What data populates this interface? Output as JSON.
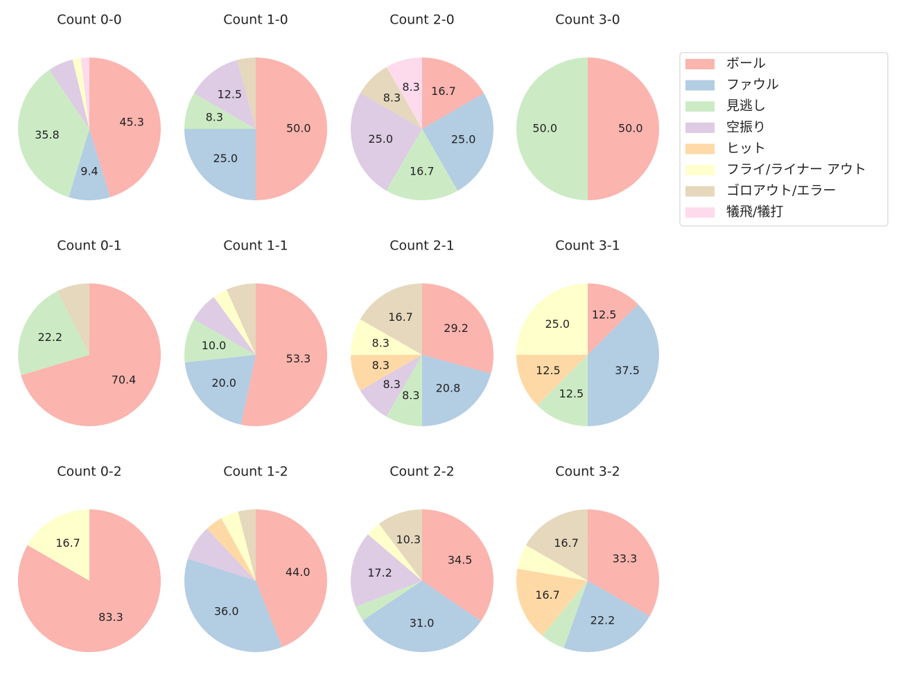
{
  "chart_data": [
    {
      "type": "pie",
      "title": "Count 0-0",
      "categories": [
        "ボール",
        "ファウル",
        "見逃し",
        "空振り",
        "ヒット",
        "フライ/ライナー アウト",
        "ゴロアウト/エラー",
        "犠飛/犠打"
      ],
      "colors": [
        "#fbb4ae",
        "#b3cde3",
        "#ccebc5",
        "#decbe4",
        "#fed9a6",
        "#ffffcc",
        "#e5d8bd",
        "#fddaec"
      ],
      "values": [
        45.3,
        9.4,
        35.8,
        5.7,
        0,
        1.9,
        0,
        1.9
      ],
      "value_labels": [
        "45.3",
        "9.4",
        "35.8",
        null,
        null,
        null,
        null,
        null
      ]
    },
    {
      "type": "pie",
      "title": "Count 1-0",
      "categories": [
        "ボール",
        "ファウル",
        "見逃し",
        "空振り",
        "ヒット",
        "フライ/ライナー アウト",
        "ゴロアウト/エラー",
        "犠飛/犠打"
      ],
      "colors": [
        "#fbb4ae",
        "#b3cde3",
        "#ccebc5",
        "#decbe4",
        "#fed9a6",
        "#ffffcc",
        "#e5d8bd",
        "#fddaec"
      ],
      "values": [
        50.0,
        25.0,
        8.3,
        12.5,
        0,
        0,
        4.2,
        0
      ],
      "value_labels": [
        "50.0",
        "25.0",
        "8.3",
        "12.5",
        null,
        null,
        null,
        null
      ]
    },
    {
      "type": "pie",
      "title": "Count 2-0",
      "categories": [
        "ボール",
        "ファウル",
        "見逃し",
        "空振り",
        "ヒット",
        "フライ/ライナー アウト",
        "ゴロアウト/エラー",
        "犠飛/犠打"
      ],
      "colors": [
        "#fbb4ae",
        "#b3cde3",
        "#ccebc5",
        "#decbe4",
        "#fed9a6",
        "#ffffcc",
        "#e5d8bd",
        "#fddaec"
      ],
      "values": [
        16.7,
        25.0,
        16.7,
        25.0,
        0,
        0,
        8.3,
        8.3
      ],
      "value_labels": [
        "16.7",
        "25.0",
        "16.7",
        "25.0",
        null,
        null,
        "8.3",
        "8.3"
      ]
    },
    {
      "type": "pie",
      "title": "Count 3-0",
      "categories": [
        "ボール",
        "ファウル",
        "見逃し",
        "空振り",
        "ヒット",
        "フライ/ライナー アウト",
        "ゴロアウト/エラー",
        "犠飛/犠打"
      ],
      "colors": [
        "#fbb4ae",
        "#b3cde3",
        "#ccebc5",
        "#decbe4",
        "#fed9a6",
        "#ffffcc",
        "#e5d8bd",
        "#fddaec"
      ],
      "values": [
        50.0,
        0,
        50.0,
        0,
        0,
        0,
        0,
        0
      ],
      "value_labels": [
        "50.0",
        null,
        "50.0",
        null,
        null,
        null,
        null,
        null
      ]
    },
    {
      "type": "pie",
      "title": "Count 0-1",
      "categories": [
        "ボール",
        "ファウル",
        "見逃し",
        "空振り",
        "ヒット",
        "フライ/ライナー アウト",
        "ゴロアウト/エラー",
        "犠飛/犠打"
      ],
      "colors": [
        "#fbb4ae",
        "#b3cde3",
        "#ccebc5",
        "#decbe4",
        "#fed9a6",
        "#ffffcc",
        "#e5d8bd",
        "#fddaec"
      ],
      "values": [
        70.4,
        0,
        22.2,
        0,
        0,
        0,
        7.4,
        0
      ],
      "value_labels": [
        "70.4",
        null,
        "22.2",
        null,
        null,
        null,
        null,
        null
      ]
    },
    {
      "type": "pie",
      "title": "Count 1-1",
      "categories": [
        "ボール",
        "ファウル",
        "見逃し",
        "空振り",
        "ヒット",
        "フライ/ライナー アウト",
        "ゴロアウト/エラー",
        "犠飛/犠打"
      ],
      "colors": [
        "#fbb4ae",
        "#b3cde3",
        "#ccebc5",
        "#decbe4",
        "#fed9a6",
        "#ffffcc",
        "#e5d8bd",
        "#fddaec"
      ],
      "values": [
        53.3,
        20.0,
        10.0,
        6.7,
        0,
        3.3,
        6.7,
        0
      ],
      "value_labels": [
        "53.3",
        "20.0",
        "10.0",
        null,
        null,
        null,
        null,
        null
      ]
    },
    {
      "type": "pie",
      "title": "Count 2-1",
      "categories": [
        "ボール",
        "ファウル",
        "見逃し",
        "空振り",
        "ヒット",
        "フライ/ライナー アウト",
        "ゴロアウト/エラー",
        "犠飛/犠打"
      ],
      "colors": [
        "#fbb4ae",
        "#b3cde3",
        "#ccebc5",
        "#decbe4",
        "#fed9a6",
        "#ffffcc",
        "#e5d8bd",
        "#fddaec"
      ],
      "values": [
        29.2,
        20.8,
        8.3,
        8.3,
        8.3,
        8.3,
        16.7,
        0
      ],
      "value_labels": [
        "29.2",
        "20.8",
        "8.3",
        "8.3",
        "8.3",
        "8.3",
        "16.7",
        null
      ]
    },
    {
      "type": "pie",
      "title": "Count 3-1",
      "categories": [
        "ボール",
        "ファウル",
        "見逃し",
        "空振り",
        "ヒット",
        "フライ/ライナー アウト",
        "ゴロアウト/エラー",
        "犠飛/犠打"
      ],
      "colors": [
        "#fbb4ae",
        "#b3cde3",
        "#ccebc5",
        "#decbe4",
        "#fed9a6",
        "#ffffcc",
        "#e5d8bd",
        "#fddaec"
      ],
      "values": [
        12.5,
        37.5,
        12.5,
        0,
        12.5,
        25.0,
        0,
        0
      ],
      "value_labels": [
        "12.5",
        "37.5",
        "12.5",
        null,
        "12.5",
        "25.0",
        null,
        null
      ]
    },
    {
      "type": "pie",
      "title": "Count 0-2",
      "categories": [
        "ボール",
        "ファウル",
        "見逃し",
        "空振り",
        "ヒット",
        "フライ/ライナー アウト",
        "ゴロアウト/エラー",
        "犠飛/犠打"
      ],
      "colors": [
        "#fbb4ae",
        "#b3cde3",
        "#ccebc5",
        "#decbe4",
        "#fed9a6",
        "#ffffcc",
        "#e5d8bd",
        "#fddaec"
      ],
      "values": [
        83.3,
        0,
        0,
        0,
        0,
        16.7,
        0,
        0
      ],
      "value_labels": [
        "83.3",
        null,
        null,
        null,
        null,
        "16.7",
        null,
        null
      ]
    },
    {
      "type": "pie",
      "title": "Count 1-2",
      "categories": [
        "ボール",
        "ファウル",
        "見逃し",
        "空振り",
        "ヒット",
        "フライ/ライナー アウト",
        "ゴロアウト/エラー",
        "犠飛/犠打"
      ],
      "colors": [
        "#fbb4ae",
        "#b3cde3",
        "#ccebc5",
        "#decbe4",
        "#fed9a6",
        "#ffffcc",
        "#e5d8bd",
        "#fddaec"
      ],
      "values": [
        44.0,
        36.0,
        0,
        8.0,
        4.0,
        4.0,
        4.0,
        0
      ],
      "value_labels": [
        "44.0",
        "36.0",
        null,
        null,
        null,
        null,
        null,
        null
      ]
    },
    {
      "type": "pie",
      "title": "Count 2-2",
      "categories": [
        "ボール",
        "ファウル",
        "見逃し",
        "空振り",
        "ヒット",
        "フライ/ライナー アウト",
        "ゴロアウト/エラー",
        "犠飛/犠打"
      ],
      "colors": [
        "#fbb4ae",
        "#b3cde3",
        "#ccebc5",
        "#decbe4",
        "#fed9a6",
        "#ffffcc",
        "#e5d8bd",
        "#fddaec"
      ],
      "values": [
        34.5,
        31.0,
        3.4,
        17.2,
        0,
        3.4,
        10.3,
        0
      ],
      "value_labels": [
        "34.5",
        "31.0",
        null,
        "17.2",
        null,
        null,
        "10.3",
        null
      ]
    },
    {
      "type": "pie",
      "title": "Count 3-2",
      "categories": [
        "ボール",
        "ファウル",
        "見逃し",
        "空振り",
        "ヒット",
        "フライ/ライナー アウト",
        "ゴロアウト/エラー",
        "犠飛/犠打"
      ],
      "colors": [
        "#fbb4ae",
        "#b3cde3",
        "#ccebc5",
        "#decbe4",
        "#fed9a6",
        "#ffffcc",
        "#e5d8bd",
        "#fddaec"
      ],
      "values": [
        33.3,
        22.2,
        5.6,
        0,
        16.7,
        5.6,
        16.7,
        0
      ],
      "value_labels": [
        "33.3",
        "22.2",
        null,
        null,
        "16.7",
        null,
        "16.7",
        null
      ]
    }
  ]
}
